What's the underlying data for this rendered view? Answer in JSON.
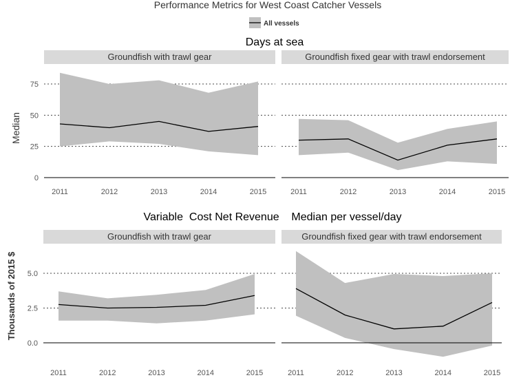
{
  "title": "Performance Metrics for West Coast Catcher Vessels",
  "legend": {
    "label": "All vessels"
  },
  "colors": {
    "band": "#c0c0c0",
    "strip": "#d9d9d9",
    "line": "#000000",
    "text": "#333333",
    "tick": "#555555"
  },
  "sections": [
    {
      "label": "Days at sea",
      "ylabel": "Median"
    },
    {
      "label": "Variable  Cost Net Revenue    Median per vessel/day",
      "ylabel": "Thousands of 2015 $"
    }
  ],
  "chart_data": [
    {
      "type": "area",
      "section": "Days at sea",
      "facet": "Groundfish with trawl gear",
      "x": [
        2011,
        2012,
        2013,
        2014,
        2015
      ],
      "median": [
        43,
        40,
        45,
        37,
        41
      ],
      "lower": [
        25,
        29,
        27,
        21,
        18
      ],
      "upper": [
        84,
        75,
        78,
        68,
        77
      ],
      "ylim": [
        0,
        90
      ],
      "yticks": [
        0,
        25,
        50,
        75
      ],
      "ytick_labels": [
        "0",
        "25",
        "50",
        "75"
      ],
      "ylabel": "Median",
      "xtick_labels": [
        "2011",
        "2012",
        "2013",
        "2014",
        "2015"
      ]
    },
    {
      "type": "area",
      "section": "Days at sea",
      "facet": "Groundfish fixed gear with trawl endorsement",
      "x": [
        2011,
        2012,
        2013,
        2014,
        2015
      ],
      "median": [
        30,
        31,
        14,
        26,
        31
      ],
      "lower": [
        18,
        20,
        6,
        13,
        11
      ],
      "upper": [
        47,
        46,
        28,
        39,
        45
      ],
      "ylim": [
        0,
        90
      ],
      "yticks": [
        0,
        25,
        50,
        75
      ],
      "xtick_labels": [
        "2011",
        "2012",
        "2013",
        "2014",
        "2015"
      ]
    },
    {
      "type": "area",
      "section": "Variable Cost Net Revenue Median per vessel/day",
      "facet": "Groundfish with trawl gear",
      "x": [
        2011,
        2012,
        2013,
        2014,
        2015
      ],
      "median": [
        2.75,
        2.5,
        2.55,
        2.7,
        3.4
      ],
      "lower": [
        1.6,
        1.6,
        1.4,
        1.6,
        2.05
      ],
      "upper": [
        3.7,
        3.2,
        3.45,
        3.8,
        4.95
      ],
      "ylim": [
        -1.1,
        7.0
      ],
      "yticks": [
        0,
        2.5,
        5
      ],
      "ytick_labels": [
        "0.0",
        "2.5",
        "5.0"
      ],
      "ylabel": "Thousands of 2015 $",
      "xtick_labels": [
        "2011",
        "2012",
        "2013",
        "2014",
        "2015"
      ]
    },
    {
      "type": "area",
      "section": "Variable Cost Net Revenue Median per vessel/day",
      "facet": "Groundfish fixed gear with trawl endorsement",
      "x": [
        2011,
        2012,
        2013,
        2014,
        2015
      ],
      "median": [
        3.9,
        2.0,
        1.0,
        1.2,
        2.9
      ],
      "lower": [
        1.95,
        0.35,
        -0.45,
        -1.0,
        -0.2
      ],
      "upper": [
        6.6,
        4.3,
        4.95,
        4.8,
        5.0
      ],
      "ylim": [
        -1.1,
        7.0
      ],
      "yticks": [
        0,
        2.5,
        5
      ],
      "xtick_labels": [
        "2011",
        "2012",
        "2013",
        "2014",
        "2015"
      ]
    }
  ]
}
